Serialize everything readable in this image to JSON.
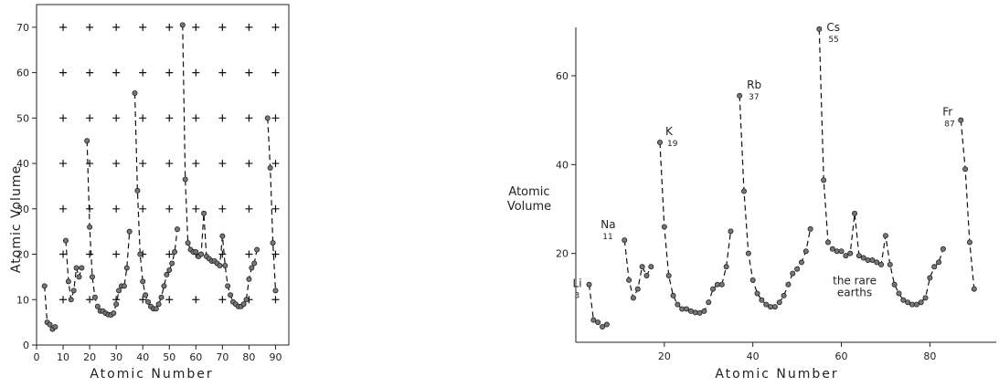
{
  "chart_data": [
    {
      "type": "scatter",
      "xlabel": "Atomic Number",
      "ylabel": "Atomic Volume",
      "xlim": [
        0,
        95
      ],
      "ylim": [
        0,
        75
      ],
      "x_ticks": [
        0,
        10,
        20,
        30,
        40,
        50,
        60,
        70,
        80,
        90
      ],
      "y_ticks": [
        0,
        10,
        20,
        30,
        40,
        50,
        60,
        70
      ],
      "grid": "plus-markers at every 10 units",
      "series": [
        {
          "points": [
            [
              3,
              13
            ],
            [
              4,
              5
            ],
            [
              5,
              4.5
            ],
            [
              6,
              3.5
            ],
            [
              7,
              4
            ],
            [
              11,
              23
            ],
            [
              12,
              14
            ],
            [
              13,
              10
            ],
            [
              14,
              12
            ],
            [
              15,
              17
            ],
            [
              16,
              15
            ],
            [
              17,
              17
            ],
            [
              19,
              45
            ],
            [
              20,
              26
            ],
            [
              21,
              15
            ],
            [
              22,
              10.5
            ],
            [
              23,
              8.5
            ],
            [
              24,
              7.5
            ],
            [
              25,
              7.5
            ],
            [
              26,
              7
            ],
            [
              27,
              6.7
            ],
            [
              28,
              6.6
            ],
            [
              29,
              7
            ],
            [
              30,
              9
            ],
            [
              31,
              12
            ],
            [
              32,
              13
            ],
            [
              33,
              13
            ],
            [
              34,
              17
            ],
            [
              35,
              25
            ],
            [
              37,
              55.5
            ],
            [
              38,
              34
            ],
            [
              39,
              20
            ],
            [
              40,
              14
            ],
            [
              41,
              11
            ],
            [
              42,
              9.5
            ],
            [
              43,
              8.5
            ],
            [
              44,
              8
            ],
            [
              45,
              8
            ],
            [
              46,
              9
            ],
            [
              47,
              10.5
            ],
            [
              48,
              13
            ],
            [
              49,
              15.5
            ],
            [
              50,
              16.5
            ],
            [
              51,
              18
            ],
            [
              52,
              20.5
            ],
            [
              53,
              25.5
            ],
            [
              55,
              70.5
            ],
            [
              56,
              36.5
            ],
            [
              57,
              22.5
            ],
            [
              58,
              21
            ],
            [
              59,
              20.5
            ],
            [
              60,
              20.5
            ],
            [
              61,
              19.5
            ],
            [
              62,
              20
            ],
            [
              63,
              29
            ],
            [
              64,
              19.5
            ],
            [
              65,
              19
            ],
            [
              66,
              18.5
            ],
            [
              67,
              18.5
            ],
            [
              68,
              18
            ],
            [
              69,
              17.5
            ],
            [
              70,
              24
            ],
            [
              71,
              17.5
            ],
            [
              72,
              13
            ],
            [
              73,
              11
            ],
            [
              74,
              9.5
            ],
            [
              75,
              9
            ],
            [
              76,
              8.5
            ],
            [
              77,
              8.5
            ],
            [
              78,
              9
            ],
            [
              79,
              10
            ],
            [
              80,
              14.5
            ],
            [
              81,
              17
            ],
            [
              82,
              18
            ],
            [
              83,
              21
            ],
            [
              87,
              50
            ],
            [
              88,
              39
            ],
            [
              89,
              22.5
            ],
            [
              90,
              12
            ]
          ]
        }
      ]
    },
    {
      "type": "scatter",
      "xlabel": "Atomic Number",
      "ylabel": "Atomic Volume",
      "xlim": [
        0,
        95
      ],
      "ylim": [
        0,
        75
      ],
      "x_ticks": [
        20,
        40,
        60,
        80
      ],
      "y_ticks": [
        20,
        40,
        60
      ],
      "annotations": [
        {
          "symbol": "Li",
          "number": "3",
          "x": 3,
          "y": 13
        },
        {
          "symbol": "Na",
          "number": "11",
          "x": 11,
          "y": 23
        },
        {
          "symbol": "K",
          "number": "19",
          "x": 19,
          "y": 45
        },
        {
          "symbol": "Rb",
          "number": "37",
          "x": 37,
          "y": 55.5
        },
        {
          "symbol": "Cs",
          "number": "55",
          "x": 55,
          "y": 70.5
        },
        {
          "symbol": "Fr",
          "number": "87",
          "x": 87,
          "y": 50
        }
      ],
      "region_label": [
        "the rare",
        "earths"
      ],
      "series": [
        {
          "points": [
            [
              3,
              13
            ],
            [
              4,
              5
            ],
            [
              5,
              4.5
            ],
            [
              6,
              3.5
            ],
            [
              7,
              4
            ],
            [
              11,
              23
            ],
            [
              12,
              14
            ],
            [
              13,
              10
            ],
            [
              14,
              12
            ],
            [
              15,
              17
            ],
            [
              16,
              15
            ],
            [
              17,
              17
            ],
            [
              19,
              45
            ],
            [
              20,
              26
            ],
            [
              21,
              15
            ],
            [
              22,
              10.5
            ],
            [
              23,
              8.5
            ],
            [
              24,
              7.5
            ],
            [
              25,
              7.5
            ],
            [
              26,
              7
            ],
            [
              27,
              6.7
            ],
            [
              28,
              6.6
            ],
            [
              29,
              7
            ],
            [
              30,
              9
            ],
            [
              31,
              12
            ],
            [
              32,
              13
            ],
            [
              33,
              13
            ],
            [
              34,
              17
            ],
            [
              35,
              25
            ],
            [
              37,
              55.5
            ],
            [
              38,
              34
            ],
            [
              39,
              20
            ],
            [
              40,
              14
            ],
            [
              41,
              11
            ],
            [
              42,
              9.5
            ],
            [
              43,
              8.5
            ],
            [
              44,
              8
            ],
            [
              45,
              8
            ],
            [
              46,
              9
            ],
            [
              47,
              10.5
            ],
            [
              48,
              13
            ],
            [
              49,
              15.5
            ],
            [
              50,
              16.5
            ],
            [
              51,
              18
            ],
            [
              52,
              20.5
            ],
            [
              53,
              25.5
            ],
            [
              55,
              70.5
            ],
            [
              56,
              36.5
            ],
            [
              57,
              22.5
            ],
            [
              58,
              21
            ],
            [
              59,
              20.5
            ],
            [
              60,
              20.5
            ],
            [
              61,
              19.5
            ],
            [
              62,
              20
            ],
            [
              63,
              29
            ],
            [
              64,
              19.5
            ],
            [
              65,
              19
            ],
            [
              66,
              18.5
            ],
            [
              67,
              18.5
            ],
            [
              68,
              18
            ],
            [
              69,
              17.5
            ],
            [
              70,
              24
            ],
            [
              71,
              17.5
            ],
            [
              72,
              13
            ],
            [
              73,
              11
            ],
            [
              74,
              9.5
            ],
            [
              75,
              9
            ],
            [
              76,
              8.5
            ],
            [
              77,
              8.5
            ],
            [
              78,
              9
            ],
            [
              79,
              10
            ],
            [
              80,
              14.5
            ],
            [
              81,
              17
            ],
            [
              82,
              18
            ],
            [
              83,
              21
            ],
            [
              87,
              50
            ],
            [
              88,
              39
            ],
            [
              89,
              22.5
            ],
            [
              90,
              12
            ]
          ]
        }
      ]
    }
  ]
}
